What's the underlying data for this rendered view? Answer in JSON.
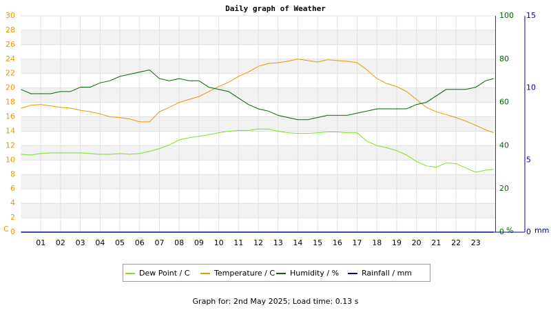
{
  "chart_data": {
    "type": "line",
    "title": "Daily graph of Weather",
    "x": [
      0,
      0.5,
      1,
      1.5,
      2,
      2.5,
      3,
      3.5,
      4,
      4.5,
      5,
      5.5,
      6,
      6.5,
      7,
      7.5,
      8,
      8.5,
      9,
      9.5,
      10,
      10.5,
      11,
      11.5,
      12,
      12.5,
      13,
      13.5,
      14,
      14.5,
      15,
      15.5,
      16,
      16.5,
      17,
      17.5,
      18,
      18.5,
      19,
      19.5,
      20,
      20.5,
      21,
      21.5,
      22,
      22.5,
      23,
      23.5,
      23.9
    ],
    "xlim": [
      0,
      24
    ],
    "xticks": [
      {
        "value": 1,
        "label": "01"
      },
      {
        "value": 2,
        "label": "02"
      },
      {
        "value": 3,
        "label": "03"
      },
      {
        "value": 4,
        "label": "04"
      },
      {
        "value": 5,
        "label": "05"
      },
      {
        "value": 6,
        "label": "06"
      },
      {
        "value": 7,
        "label": "07"
      },
      {
        "value": 8,
        "label": "08"
      },
      {
        "value": 9,
        "label": "09"
      },
      10,
      11,
      12,
      13,
      14,
      15,
      16,
      17,
      18,
      19,
      20,
      21,
      22,
      23
    ],
    "ylim": [
      0,
      30
    ],
    "yticks": [
      0,
      2,
      4,
      6,
      8,
      10,
      12,
      14,
      16,
      18,
      20,
      22,
      24,
      26,
      28,
      30
    ],
    "ylabel": "C",
    "ycolor": "#e69900",
    "y2lim": [
      0,
      100
    ],
    "y2ticks": [
      0,
      20,
      40,
      60,
      80,
      100
    ],
    "y2label": "%",
    "y2color": "#006600",
    "y3lim": [
      0,
      15
    ],
    "y3ticks": [
      0,
      5,
      10,
      15
    ],
    "y3label": "mm",
    "y3color": "#000099",
    "grid": true,
    "series": [
      {
        "name": "Dew Point / C",
        "color": "#7fe020",
        "axis": "y",
        "values": [
          10.8,
          10.7,
          10.9,
          11.0,
          11.0,
          11.0,
          11.0,
          10.9,
          10.8,
          10.8,
          10.9,
          10.8,
          10.9,
          11.2,
          11.6,
          12.1,
          12.8,
          13.1,
          13.3,
          13.5,
          13.8,
          14.0,
          14.1,
          14.1,
          14.3,
          14.3,
          14.0,
          13.8,
          13.7,
          13.7,
          13.8,
          13.9,
          13.9,
          13.8,
          13.8,
          12.6,
          12.0,
          11.7,
          11.3,
          10.7,
          9.8,
          9.2,
          9.0,
          9.6,
          9.5,
          8.9,
          8.3,
          8.6,
          8.7
        ]
      },
      {
        "name": "Temperature / C",
        "color": "#e69900",
        "axis": "y",
        "values": [
          17.2,
          17.6,
          17.7,
          17.5,
          17.3,
          17.2,
          16.9,
          16.7,
          16.4,
          16.0,
          15.9,
          15.7,
          15.3,
          15.3,
          16.7,
          17.3,
          18.0,
          18.4,
          18.8,
          19.5,
          20.2,
          20.8,
          21.6,
          22.2,
          23.0,
          23.4,
          23.5,
          23.7,
          24.0,
          23.8,
          23.6,
          23.9,
          23.8,
          23.7,
          23.5,
          22.5,
          21.3,
          20.6,
          20.2,
          19.5,
          18.4,
          17.3,
          16.7,
          16.3,
          15.9,
          15.4,
          14.8,
          14.2,
          13.8
        ]
      },
      {
        "name": "Humidity / %",
        "color": "#006600",
        "axis": "y2",
        "values": [
          66,
          64,
          64,
          64,
          65,
          65,
          67,
          67,
          69,
          70,
          72,
          73,
          74,
          75,
          71,
          70,
          71,
          70,
          70,
          67,
          66,
          65,
          62,
          59,
          57,
          56,
          54,
          53,
          52,
          52,
          53,
          54,
          54,
          54,
          55,
          56,
          57,
          57,
          57,
          57,
          59,
          60,
          63,
          66,
          66,
          66,
          67,
          70,
          71
        ]
      },
      {
        "name": "Rainfall / mm",
        "color": "#000099",
        "axis": "y3",
        "values": [
          0,
          0,
          0,
          0,
          0,
          0,
          0,
          0,
          0,
          0,
          0,
          0,
          0,
          0,
          0,
          0,
          0,
          0,
          0,
          0,
          0,
          0,
          0,
          0,
          0,
          0,
          0,
          0,
          0,
          0,
          0,
          0,
          0,
          0,
          0,
          0,
          0,
          0,
          0,
          0,
          0,
          0,
          0,
          0,
          0,
          0,
          0,
          0,
          0
        ]
      }
    ],
    "footer": "Graph for: 2nd May 2025; Load time: 0.13 s"
  }
}
